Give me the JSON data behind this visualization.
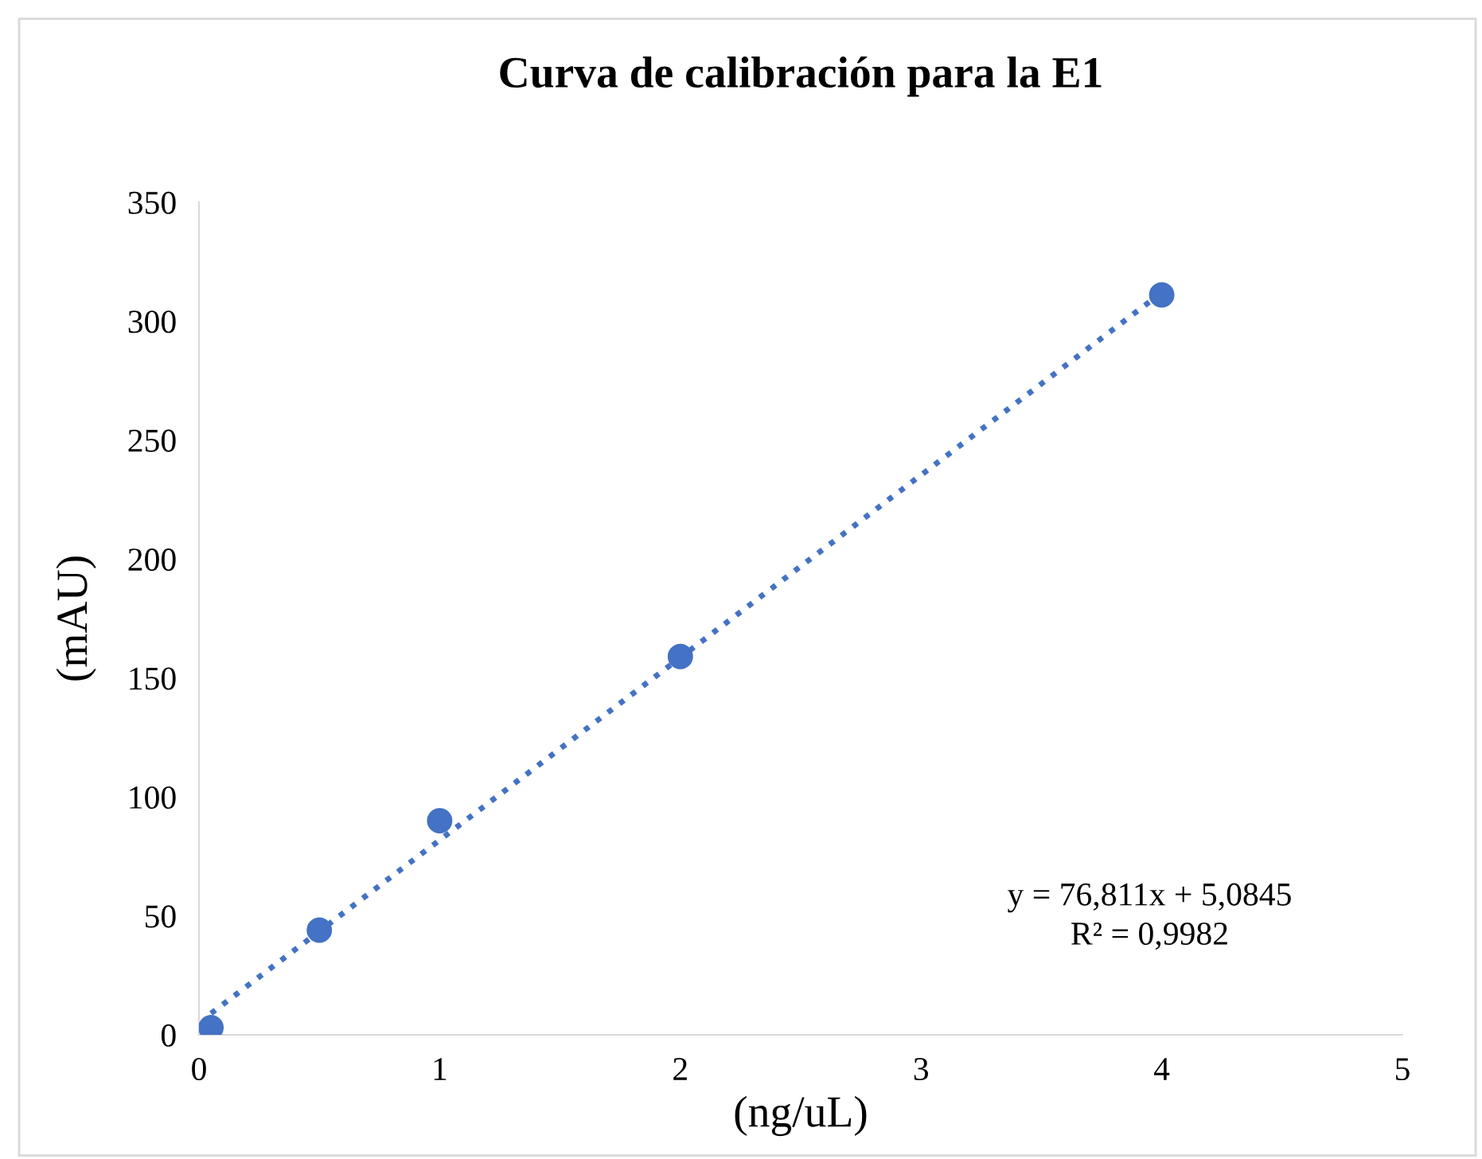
{
  "chart_data": {
    "type": "scatter",
    "title": "Curva de calibración para la E1",
    "xlabel": "(ng/uL)",
    "ylabel": "(mAU)",
    "xlim": [
      0,
      5
    ],
    "xticks": [
      0,
      1,
      2,
      3,
      4,
      5
    ],
    "ylim": [
      0,
      350
    ],
    "yticks": [
      0,
      50,
      100,
      150,
      200,
      250,
      300,
      350
    ],
    "grid": false,
    "legend": false,
    "marker": "circle",
    "series": [
      {
        "color": "#4472c4",
        "x": [
          0.05,
          0.5,
          1,
          2,
          4
        ],
        "values": [
          3,
          44,
          90,
          159,
          311
        ]
      },
      {
        "type": "line",
        "color": "#4472c4",
        "line_style": "dotted",
        "marker": "none",
        "x": [
          0.05,
          4
        ],
        "values": [
          9,
          312
        ]
      }
    ],
    "annotations": [
      "y = 76,811x + 5,0845",
      "R² = 0,9982"
    ]
  }
}
